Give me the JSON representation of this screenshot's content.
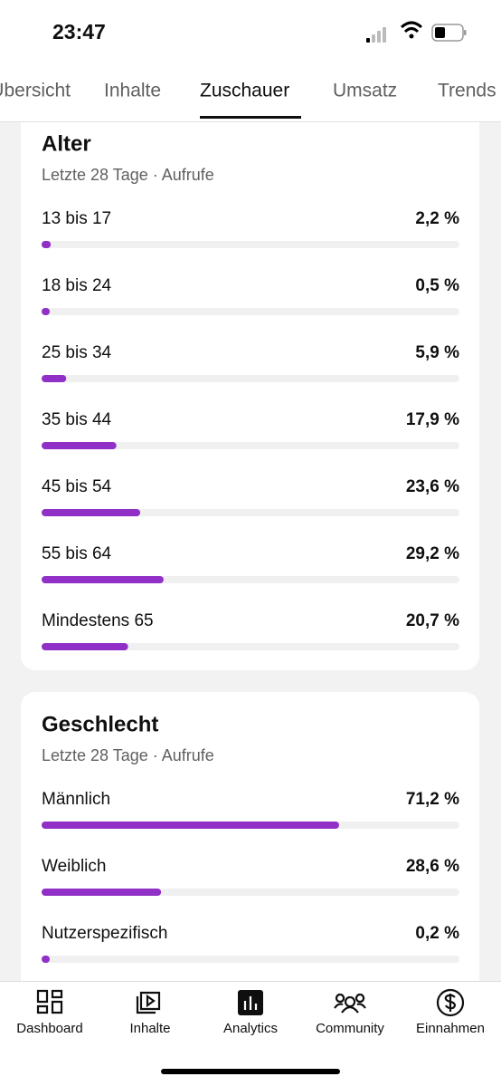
{
  "status_bar": {
    "time": "23:47"
  },
  "tabs": [
    "Übersicht",
    "Inhalte",
    "Zuschauer",
    "Umsatz",
    "Trends"
  ],
  "chart_data": [
    {
      "type": "hbar",
      "title": "Alter",
      "subtitle": "Letzte 28 Tage · Aufrufe",
      "categories": [
        "13 bis 17",
        "18 bis 24",
        "25 bis 34",
        "35 bis 44",
        "45 bis 54",
        "55 bis 64",
        "Mindestens 65"
      ],
      "values": [
        2.2,
        0.5,
        5.9,
        17.9,
        23.6,
        29.2,
        20.7
      ],
      "value_labels": [
        "2,2 %",
        "0,5 %",
        "5,9 %",
        "17,9 %",
        "23,6 %",
        "29,2 %",
        "20,7 %"
      ],
      "color": "#9030c6",
      "xlim": [
        0,
        100
      ]
    },
    {
      "type": "hbar",
      "title": "Geschlecht",
      "subtitle": "Letzte 28 Tage · Aufrufe",
      "categories": [
        "Männlich",
        "Weiblich",
        "Nutzerspezifisch"
      ],
      "values": [
        71.2,
        28.6,
        0.2
      ],
      "value_labels": [
        "71,2 %",
        "28,6 %",
        "0,2 %"
      ],
      "color": "#9030c6",
      "xlim": [
        0,
        100
      ]
    }
  ],
  "nav": [
    "Dashboard",
    "Inhalte",
    "Analytics",
    "Community",
    "Einnahmen"
  ]
}
